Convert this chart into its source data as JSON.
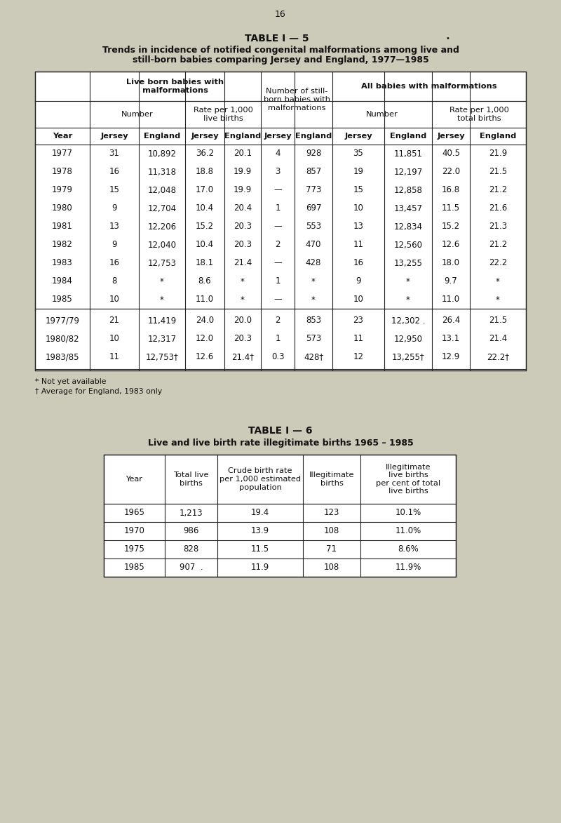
{
  "page_number": "16",
  "bg_color": "#cccab8",
  "table1_title": "TABLE I — 5",
  "table1_subtitle1": "Trends in incidence of notified congenital malformations among live and",
  "table1_subtitle2": "still-born babies comparing Jersey and England, 1977—1985",
  "table1_data": [
    [
      "1977",
      "31",
      "10,892",
      "36.2",
      "20.1",
      "4",
      "928",
      "35",
      "11,851",
      "40.5",
      "21.9"
    ],
    [
      "1978",
      "16",
      "11,318",
      "18.8",
      "19.9",
      "3",
      "857",
      "19",
      "12,197",
      "22.0",
      "21.5"
    ],
    [
      "1979",
      "15",
      "12,048",
      "17.0",
      "19.9",
      "—",
      "773",
      "15",
      "12,858",
      "16.8",
      "21.2"
    ],
    [
      "1980",
      "9",
      "12,704",
      "10.4",
      "20.4",
      "1",
      "697",
      "10",
      "13,457",
      "11.5",
      "21.6"
    ],
    [
      "1981",
      "13",
      "12,206",
      "15.2",
      "20.3",
      "—",
      "553",
      "13",
      "12,834",
      "15.2",
      "21.3"
    ],
    [
      "1982",
      "9",
      "12,040",
      "10.4",
      "20.3",
      "2",
      "470",
      "11",
      "12,560",
      "12.6",
      "21.2"
    ],
    [
      "1983",
      "16",
      "12,753",
      "18.1",
      "21.4",
      "—",
      "428",
      "16",
      "13,255",
      "18.0",
      "22.2"
    ],
    [
      "1984",
      "8",
      "*",
      "8.6",
      "*",
      "1",
      "*",
      "9",
      "*",
      "9.7",
      "*"
    ],
    [
      "1985",
      "10",
      "*",
      "11.0",
      "*",
      "—",
      "*",
      "10",
      "*",
      "11.0",
      "*"
    ]
  ],
  "table1_summary": [
    [
      "1977/79",
      "21",
      "11,419",
      "24.0",
      "20.0",
      "2",
      "853",
      "23",
      "12,302 .",
      "26.4",
      "21.5"
    ],
    [
      "1980/82",
      "10",
      "12,317",
      "12.0",
      "20.3",
      "1",
      "573",
      "11",
      "12,950",
      "13.1",
      "21.4"
    ],
    [
      "1983/85",
      "11",
      "12,753†",
      "12.6",
      "21.4†",
      "0.3",
      "428†",
      "12",
      "13,255†",
      "12.9",
      "22.2†"
    ]
  ],
  "table1_footnote1": "* Not yet available",
  "table1_footnote2": "† Average for England, 1983 only",
  "table2_title": "TABLE I — 6",
  "table2_subtitle": "Live and live birth rate illegitimate births 1965 – 1985",
  "table2_col_headers": [
    "Year",
    "Total live\nbirths",
    "Crude birth rate\nper 1,000 estimated\npopulation",
    "Illegitimate\nbirths",
    "Illegitimate\nlive births\nper cent of total\nlive births"
  ],
  "table2_data": [
    [
      "1965",
      "1,213",
      "19.4",
      "123",
      "10.1%"
    ],
    [
      "1970",
      "986",
      "13.9",
      "108",
      "11.0%"
    ],
    [
      "1975",
      "828",
      "11.5",
      "71",
      "8.6%"
    ],
    [
      "1985",
      "907  .",
      "11.9",
      "108",
      "11.9%"
    ]
  ]
}
